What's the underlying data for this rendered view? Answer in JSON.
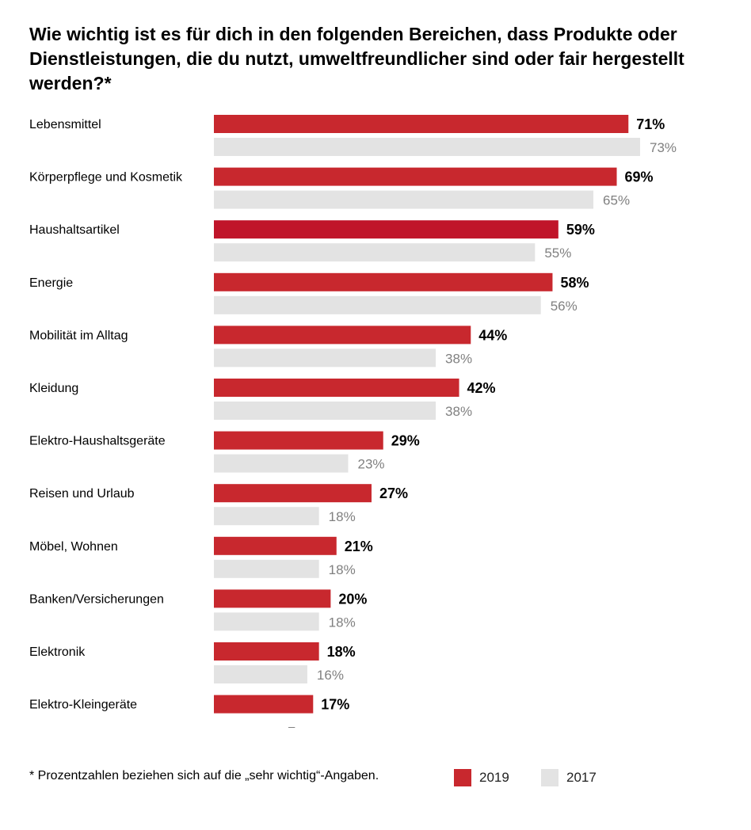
{
  "title": "Wie wichtig ist es für dich in den folgenden Bereichen, dass Produkte oder Dienstleistungen, die du nutzt, umweltfreundlicher sind oder fair hergestellt werden?*",
  "footnote": "* Prozentzahlen beziehen sich auf die „sehr wichtig“-Angaben.",
  "colors": {
    "series_2019": "#c8282e",
    "series_2019_highlight": "#c0152a",
    "series_2017": "#e3e3e3",
    "label_2019": "#000000",
    "label_2017": "#808080"
  },
  "legend": [
    {
      "label": "2019",
      "color": "#c8282e"
    },
    {
      "label": "2017",
      "color": "#e3e3e3"
    }
  ],
  "chart_data": {
    "type": "bar",
    "orientation": "horizontal",
    "title": "Wie wichtig ist es für dich in den folgenden Bereichen, dass Produkte oder Dienstleistungen, die du nutzt, umweltfreundlicher sind oder fair hergestellt werden?*",
    "categories": [
      "Lebensmittel",
      "Körperpflege und Kosmetik",
      "Haushaltsartikel",
      "Energie",
      "Mobilität im Alltag",
      "Kleidung",
      "Elektro-Haushaltsgeräte",
      "Reisen und Urlaub",
      " Möbel, Wohnen",
      "Banken/Versicherungen",
      "Elektronik",
      "Elektro-Kleingeräte"
    ],
    "series": [
      {
        "name": "2019",
        "values": [
          71,
          69,
          59,
          58,
          44,
          42,
          29,
          27,
          21,
          20,
          18,
          17
        ],
        "labels": [
          "71%",
          "69%",
          "59%",
          "58%",
          "44%",
          "42%",
          "29%",
          "27%",
          "21%",
          "20%",
          "18%",
          "17%"
        ]
      },
      {
        "name": "2017",
        "values": [
          73,
          65,
          55,
          56,
          38,
          38,
          23,
          18,
          18,
          18,
          16,
          null
        ],
        "labels": [
          "73%",
          "65%",
          "55%",
          "56%",
          "38%",
          "38%",
          "23%",
          "18%",
          "18%",
          "18%",
          "16%",
          "–"
        ]
      }
    ],
    "highlight_index": 2,
    "xlim": [
      0,
      100
    ],
    "grid": false,
    "legend_position": "bottom-right"
  }
}
